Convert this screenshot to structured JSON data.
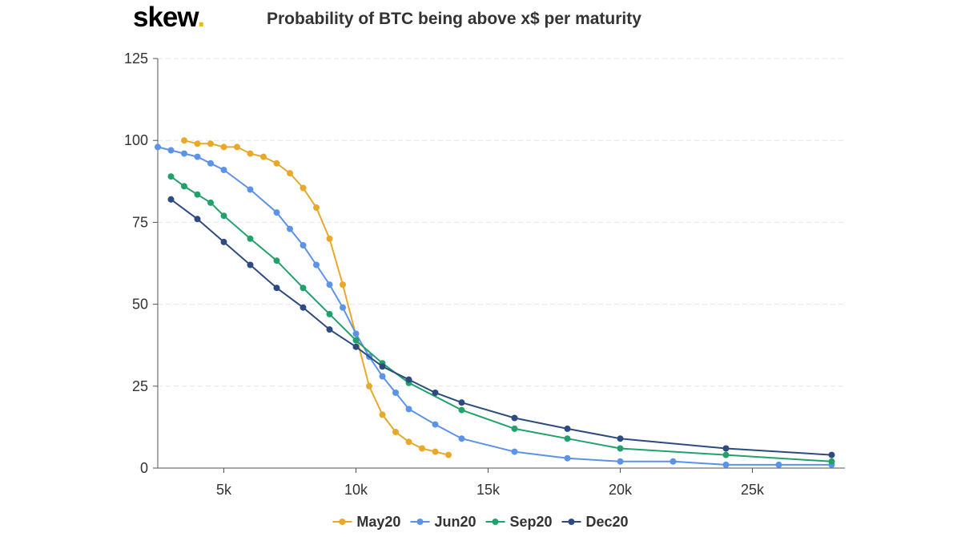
{
  "logo": {
    "text": "skew",
    "dot": "."
  },
  "chart_data": {
    "type": "line",
    "title": "Probability of BTC being above x$ per maturity",
    "xlabel": "",
    "ylabel": "",
    "xlim": [
      2500,
      28500
    ],
    "ylim": [
      0,
      125
    ],
    "x_ticks": [
      5000,
      10000,
      15000,
      20000,
      25000
    ],
    "x_tick_labels": [
      "5k",
      "10k",
      "15k",
      "20k",
      "25k"
    ],
    "y_ticks": [
      0,
      25,
      50,
      75,
      100,
      125
    ],
    "y_tick_labels": [
      "0",
      "25",
      "50",
      "75",
      "100",
      "125"
    ],
    "grid": "horizontal-dashed",
    "legend_position": "bottom-center",
    "series": [
      {
        "name": "May20",
        "color": "#e8a92b",
        "points": [
          [
            3500,
            100
          ],
          [
            4000,
            99
          ],
          [
            4500,
            99
          ],
          [
            5000,
            98
          ],
          [
            5500,
            98
          ],
          [
            6000,
            96
          ],
          [
            6500,
            95
          ],
          [
            7000,
            93
          ],
          [
            7500,
            90
          ],
          [
            8000,
            85.5
          ],
          [
            8500,
            79.5
          ],
          [
            9000,
            70
          ],
          [
            9500,
            56
          ],
          [
            10500,
            25
          ],
          [
            11000,
            16.3
          ],
          [
            11500,
            11
          ],
          [
            12000,
            8
          ],
          [
            12500,
            6
          ],
          [
            13000,
            5
          ],
          [
            13500,
            4
          ]
        ]
      },
      {
        "name": "Jun20",
        "color": "#5b93e8",
        "points": [
          [
            2500,
            98
          ],
          [
            3000,
            97
          ],
          [
            3500,
            96
          ],
          [
            4000,
            95
          ],
          [
            4500,
            93
          ],
          [
            5000,
            91
          ],
          [
            6000,
            85
          ],
          [
            7000,
            78
          ],
          [
            7500,
            73
          ],
          [
            8000,
            68
          ],
          [
            8500,
            62
          ],
          [
            9000,
            56
          ],
          [
            9500,
            49
          ],
          [
            10000,
            41
          ],
          [
            10500,
            34
          ],
          [
            11000,
            28
          ],
          [
            11500,
            23
          ],
          [
            12000,
            18
          ],
          [
            13000,
            13.3
          ],
          [
            14000,
            9
          ],
          [
            16000,
            5
          ],
          [
            18000,
            3
          ],
          [
            20000,
            2
          ],
          [
            22000,
            2
          ],
          [
            24000,
            1
          ],
          [
            26000,
            1
          ],
          [
            28000,
            1
          ]
        ]
      },
      {
        "name": "Sep20",
        "color": "#23a16b",
        "points": [
          [
            3000,
            89
          ],
          [
            3500,
            86
          ],
          [
            4000,
            83.5
          ],
          [
            4500,
            81
          ],
          [
            5000,
            77
          ],
          [
            6000,
            70
          ],
          [
            7000,
            63.3
          ],
          [
            8000,
            55
          ],
          [
            9000,
            47
          ],
          [
            10000,
            39
          ],
          [
            11000,
            32
          ],
          [
            12000,
            26
          ],
          [
            14000,
            17.7
          ],
          [
            16000,
            12
          ],
          [
            18000,
            9
          ],
          [
            20000,
            6
          ],
          [
            24000,
            4
          ],
          [
            28000,
            2
          ]
        ]
      },
      {
        "name": "Dec20",
        "color": "#2d4b80",
        "points": [
          [
            3000,
            82
          ],
          [
            4000,
            76
          ],
          [
            5000,
            69
          ],
          [
            6000,
            62
          ],
          [
            7000,
            55
          ],
          [
            8000,
            49
          ],
          [
            9000,
            42.3
          ],
          [
            10000,
            37
          ],
          [
            11000,
            31
          ],
          [
            12000,
            27
          ],
          [
            13000,
            23
          ],
          [
            14000,
            20
          ],
          [
            16000,
            15.3
          ],
          [
            18000,
            12
          ],
          [
            20000,
            9
          ],
          [
            24000,
            6
          ],
          [
            28000,
            4
          ]
        ]
      }
    ]
  }
}
